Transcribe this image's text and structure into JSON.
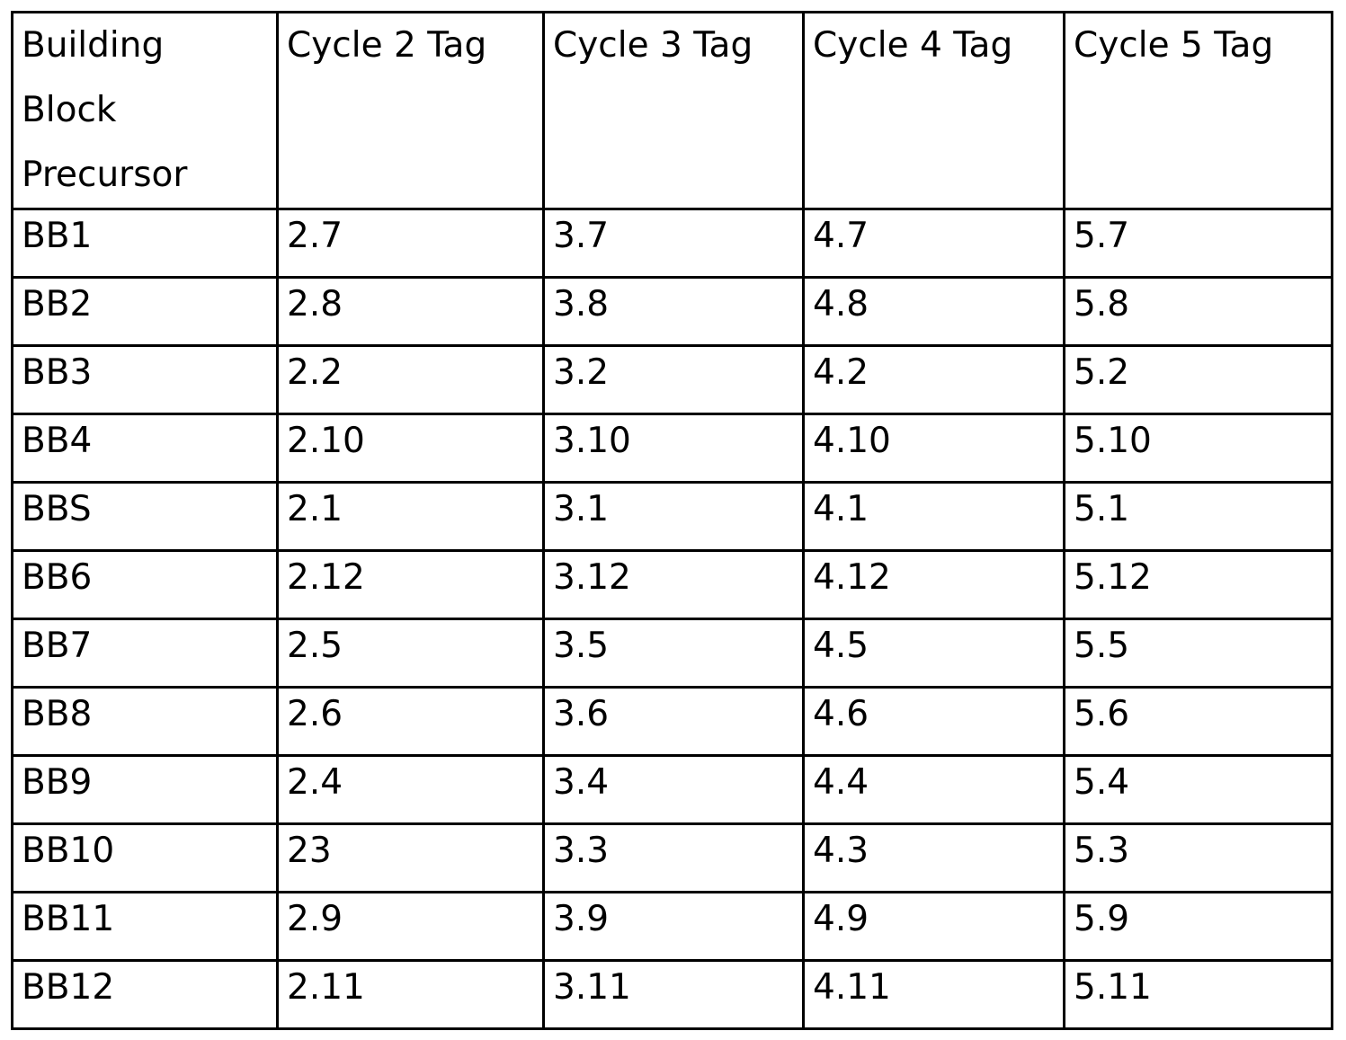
{
  "table": {
    "headers": [
      "Building Block Precursor",
      "Cycle 2 Tag",
      "Cycle 3 Tag",
      "Cycle 4 Tag",
      "Cycle 5 Tag"
    ],
    "rows": [
      [
        "BB1",
        "2.7",
        "3.7",
        "4.7",
        "5.7"
      ],
      [
        "BB2",
        "2.8",
        "3.8",
        "4.8",
        "5.8"
      ],
      [
        "BB3",
        "2.2",
        "3.2",
        "4.2",
        "5.2"
      ],
      [
        "BB4",
        "2.10",
        "3.10",
        "4.10",
        "5.10"
      ],
      [
        "BBS",
        "2.1",
        "3.1",
        "4.1",
        "5.1"
      ],
      [
        "BB6",
        "2.12",
        "3.12",
        "4.12",
        "5.12"
      ],
      [
        "BB7",
        "2.5",
        "3.5",
        "4.5",
        "5.5"
      ],
      [
        "BB8",
        "2.6",
        "3.6",
        "4.6",
        "5.6"
      ],
      [
        "BB9",
        "2.4",
        "3.4",
        "4.4",
        "5.4"
      ],
      [
        "BB10",
        "23",
        "3.3",
        "4.3",
        "5.3"
      ],
      [
        "BB11",
        "2.9",
        "3.9",
        "4.9",
        "5.9"
      ],
      [
        "BB12",
        "2.11",
        "3.11",
        "4.11",
        "5.11"
      ]
    ]
  }
}
